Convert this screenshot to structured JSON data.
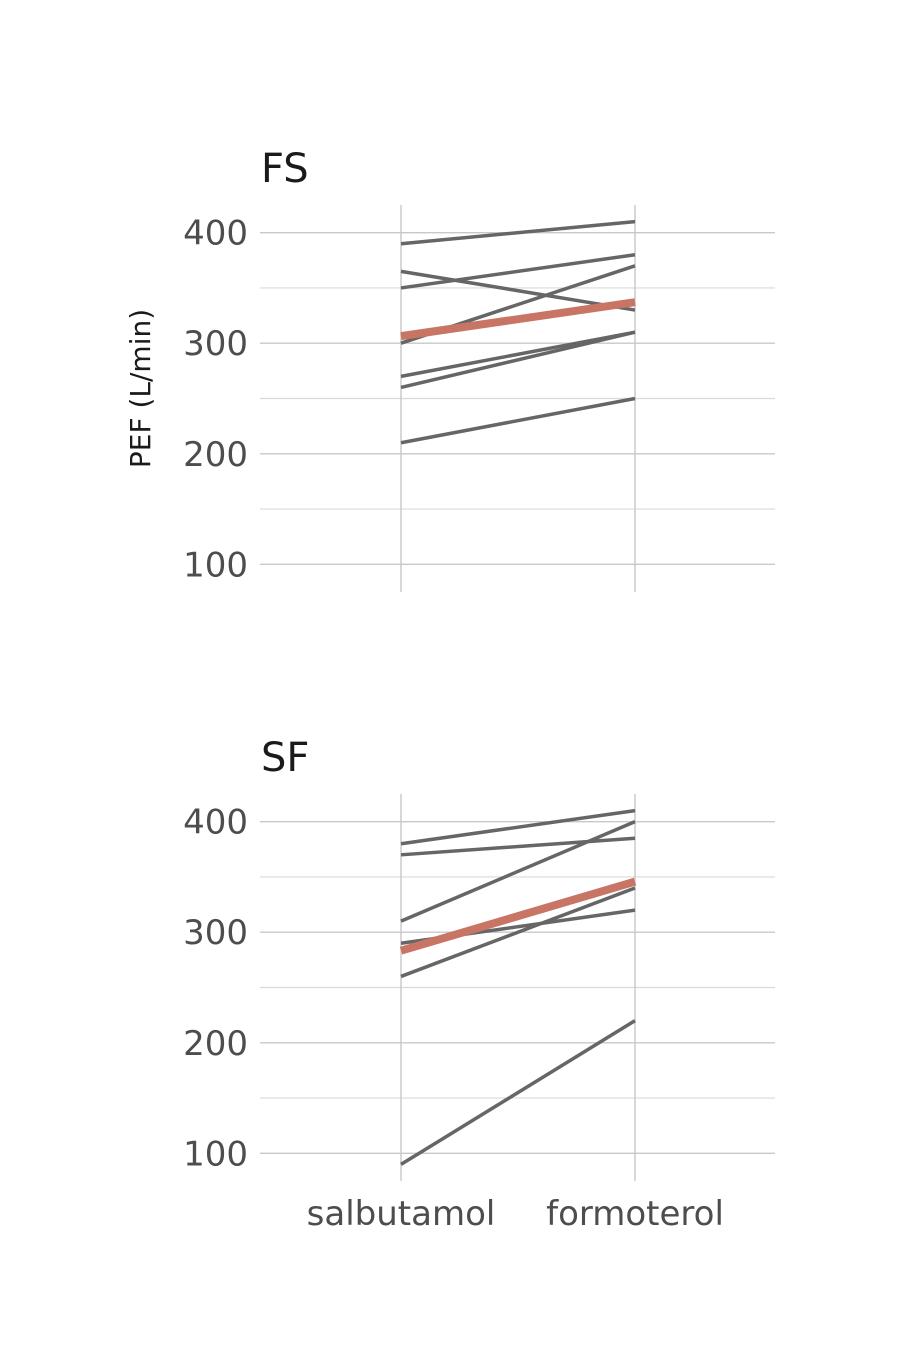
{
  "chart_data": {
    "type": "line",
    "ylabel": "PEF (L/min)",
    "xlabel": "",
    "categories": [
      "salbutamol",
      "formoterol"
    ],
    "y_ticks": [
      100,
      200,
      300,
      400
    ],
    "ylim": [
      75,
      425
    ],
    "grid": true,
    "colors": {
      "subject": "#666666",
      "mean": "#c87565"
    },
    "facets": [
      {
        "title": "FS",
        "subjects": [
          [
            390,
            410
          ],
          [
            365,
            330
          ],
          [
            350,
            380
          ],
          [
            300,
            370
          ],
          [
            270,
            310
          ],
          [
            260,
            310
          ],
          [
            210,
            250
          ]
        ],
        "mean": [
          306.4,
          337.1
        ]
      },
      {
        "title": "SF",
        "subjects": [
          [
            380,
            410
          ],
          [
            370,
            385
          ],
          [
            310,
            400
          ],
          [
            290,
            320
          ],
          [
            260,
            340
          ],
          [
            90,
            220
          ]
        ],
        "mean": [
          283.3,
          345.8
        ]
      }
    ]
  }
}
